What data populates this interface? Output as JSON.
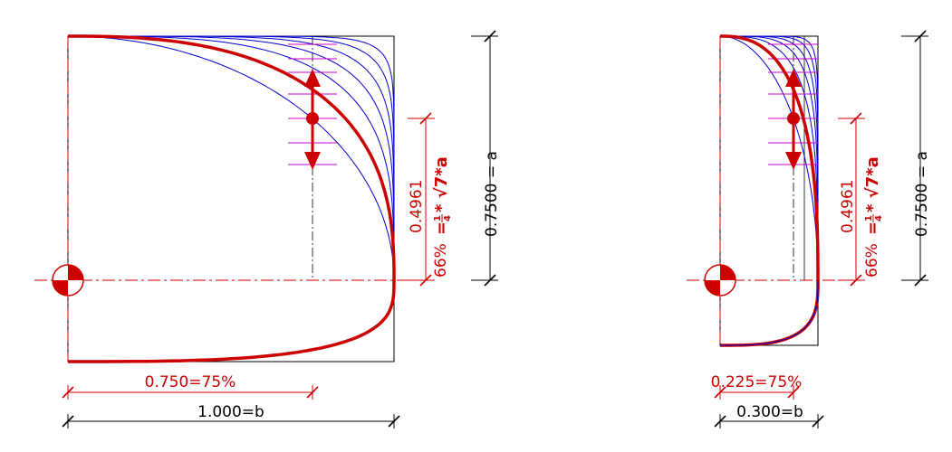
{
  "colors": {
    "frame": "#000000",
    "curve_family": "#0000cc",
    "highlight_curve": "#cc0000",
    "centerline": "#cc0000",
    "tick_marks": "#cc00cc",
    "dimension_red": "#cc0000",
    "dimension_black": "#000000"
  },
  "icons": {
    "centroid_symbol": "center-of-mass-icon",
    "arrow_marker": "double-arrow-icon"
  },
  "left_figure": {
    "horizontal_dimension_label": "1.000=b",
    "centroid_x_dimension_label": "0.750=75%",
    "vertical_dimension_label": "0.7500 = a",
    "centroid_height_label": "0.4961",
    "percent_label": "66%",
    "formula_prefix": "=",
    "formula_numerator": "1",
    "formula_denominator": "4",
    "formula_suffix": "* √7*a"
  },
  "right_figure": {
    "horizontal_dimension_label": "0.300=b",
    "centroid_x_dimension_label": "0.225=75%",
    "vertical_dimension_label": "0.7500 = a",
    "centroid_height_label": "0.4961",
    "percent_label": "66%",
    "formula_prefix": "=",
    "formula_numerator": "1",
    "formula_denominator": "4",
    "formula_suffix": "* √7*a"
  }
}
